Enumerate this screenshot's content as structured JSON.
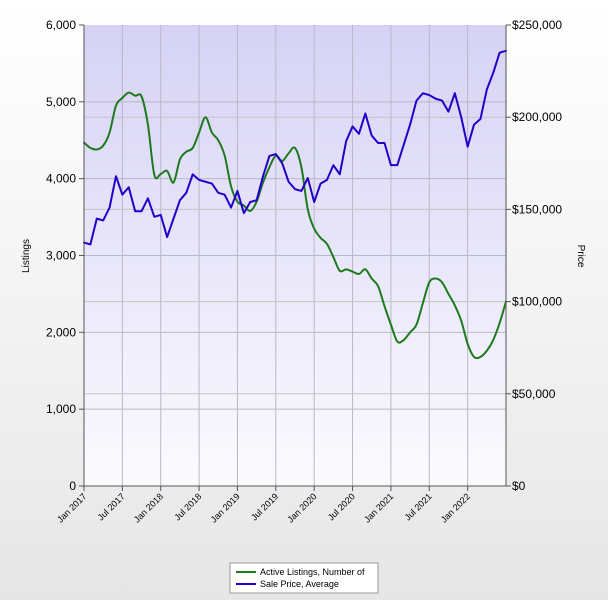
{
  "chart_data": {
    "type": "line",
    "title": "",
    "y_left_label": "Listings",
    "y_right_label": "Price",
    "y_left_ticks": [
      "0",
      "1,000",
      "2,000",
      "3,000",
      "4,000",
      "5,000",
      "6,000"
    ],
    "y_right_ticks": [
      "$0",
      "$50,000",
      "$100,000",
      "$150,000",
      "$200,000",
      "$250,000"
    ],
    "y_left_range": [
      0,
      6000
    ],
    "y_right_range": [
      0,
      250000
    ],
    "x_tick_labels": [
      "Jan 2017",
      "Jul 2017",
      "Jan 2018",
      "Jul 2018",
      "Jan 2019",
      "Jul 2019",
      "Jan 2020",
      "Jul 2020",
      "Jan 2021",
      "Jul 2021",
      "Jan 2022"
    ],
    "x_range": [
      "Jan 2017",
      "Jul 2022"
    ],
    "legend_position": "bottom",
    "series": [
      {
        "name": "Active Listings, Number of",
        "axis": "left",
        "color": "#1e7a1e",
        "x": [
          "2017-01",
          "2017-02",
          "2017-03",
          "2017-04",
          "2017-05",
          "2017-06",
          "2017-07",
          "2017-08",
          "2017-09",
          "2017-10",
          "2017-11",
          "2017-12",
          "2018-01",
          "2018-02",
          "2018-03",
          "2018-04",
          "2018-05",
          "2018-06",
          "2018-07",
          "2018-08",
          "2018-09",
          "2018-10",
          "2018-11",
          "2018-12",
          "2019-01",
          "2019-02",
          "2019-03",
          "2019-04",
          "2019-05",
          "2019-06",
          "2019-07",
          "2019-08",
          "2019-09",
          "2019-10",
          "2019-11",
          "2019-12",
          "2020-01",
          "2020-02",
          "2020-03",
          "2020-04",
          "2020-05",
          "2020-06",
          "2020-07",
          "2020-08",
          "2020-09",
          "2020-10",
          "2020-11",
          "2020-12",
          "2021-01",
          "2021-02",
          "2021-03",
          "2021-04",
          "2021-05",
          "2021-06",
          "2021-07",
          "2021-08",
          "2021-09",
          "2021-10",
          "2021-11",
          "2021-12",
          "2022-01",
          "2022-02",
          "2022-03",
          "2022-04",
          "2022-05",
          "2022-06",
          "2022-07"
        ],
        "values": [
          4470,
          4400,
          4380,
          4430,
          4600,
          4950,
          5050,
          5120,
          5080,
          5070,
          4700,
          4050,
          4060,
          4100,
          3950,
          4250,
          4350,
          4400,
          4600,
          4800,
          4600,
          4500,
          4300,
          3900,
          3700,
          3650,
          3580,
          3700,
          3950,
          4150,
          4300,
          4230,
          4330,
          4400,
          4150,
          3600,
          3350,
          3230,
          3150,
          2980,
          2800,
          2820,
          2790,
          2760,
          2820,
          2700,
          2600,
          2340,
          2100,
          1880,
          1900,
          2000,
          2100,
          2380,
          2650,
          2700,
          2650,
          2500,
          2350,
          2150,
          1850,
          1680,
          1680,
          1760,
          1900,
          2120,
          2400
        ]
      },
      {
        "name": "Sale Price, Average",
        "axis": "right",
        "color": "#2200c8",
        "x": [
          "2017-01",
          "2017-02",
          "2017-03",
          "2017-04",
          "2017-05",
          "2017-06",
          "2017-07",
          "2017-08",
          "2017-09",
          "2017-10",
          "2017-11",
          "2017-12",
          "2018-01",
          "2018-02",
          "2018-03",
          "2018-04",
          "2018-05",
          "2018-06",
          "2018-07",
          "2018-08",
          "2018-09",
          "2018-10",
          "2018-11",
          "2018-12",
          "2019-01",
          "2019-02",
          "2019-03",
          "2019-04",
          "2019-05",
          "2019-06",
          "2019-07",
          "2019-08",
          "2019-09",
          "2019-10",
          "2019-11",
          "2019-12",
          "2020-01",
          "2020-02",
          "2020-03",
          "2020-04",
          "2020-05",
          "2020-06",
          "2020-07",
          "2020-08",
          "2020-09",
          "2020-10",
          "2020-11",
          "2020-12",
          "2021-01",
          "2021-02",
          "2021-03",
          "2021-04",
          "2021-05",
          "2021-06",
          "2021-07",
          "2021-08",
          "2021-09",
          "2021-10",
          "2021-11",
          "2021-12",
          "2022-01",
          "2022-02",
          "2022-03",
          "2022-04",
          "2022-05",
          "2022-06",
          "2022-07"
        ],
        "values": [
          132000,
          131000,
          145000,
          144000,
          151000,
          168000,
          158000,
          162000,
          149000,
          149000,
          156000,
          146000,
          147000,
          135000,
          145000,
          155000,
          159000,
          169000,
          166000,
          165000,
          164000,
          159000,
          158000,
          151000,
          160000,
          148000,
          154000,
          155000,
          168000,
          179000,
          180000,
          175000,
          165000,
          161000,
          160000,
          167000,
          154000,
          164000,
          166000,
          174000,
          169000,
          187000,
          195000,
          191000,
          202000,
          190000,
          186000,
          186000,
          174000,
          174000,
          185000,
          196000,
          209000,
          213000,
          212000,
          210000,
          209000,
          203000,
          213000,
          200000,
          184000,
          196000,
          199000,
          215000,
          224000,
          235000,
          236000
        ]
      }
    ]
  }
}
